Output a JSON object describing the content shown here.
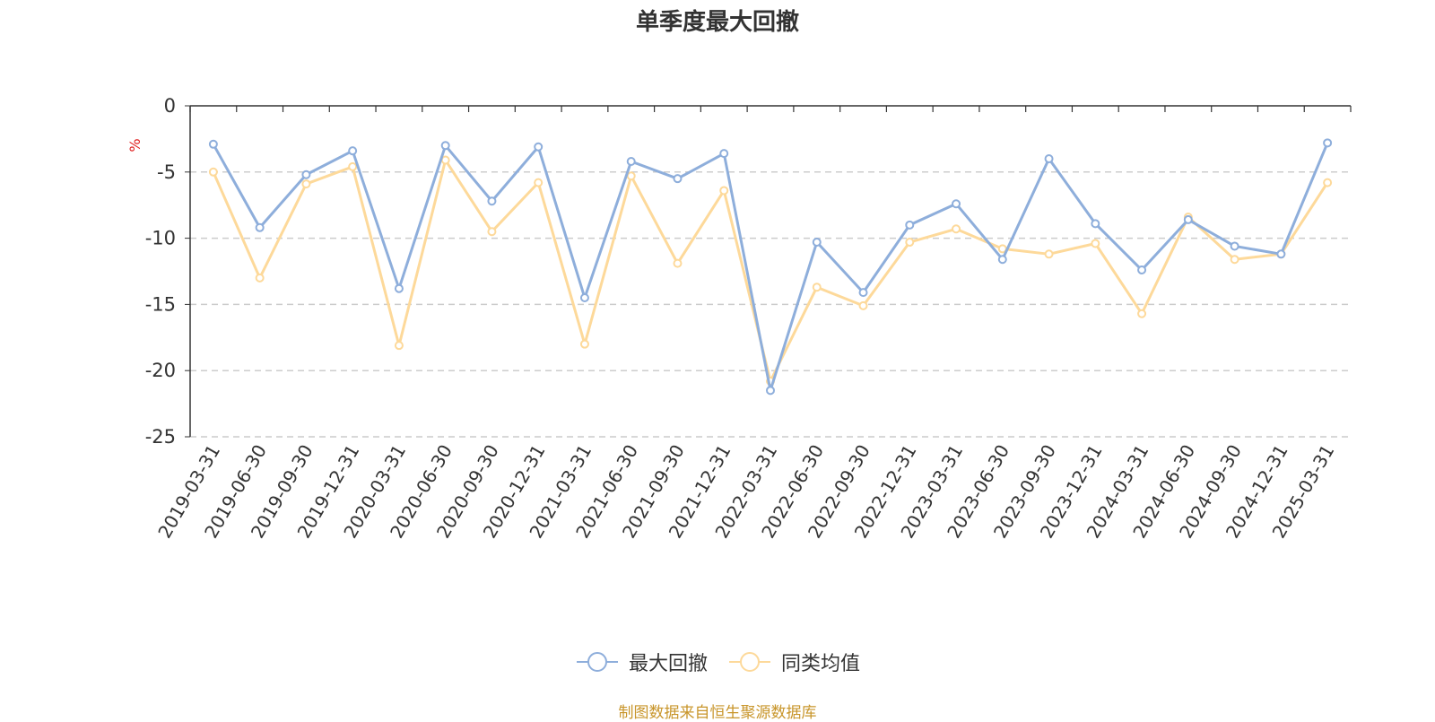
{
  "chart_data": {
    "type": "line",
    "title": "单季度最大回撤",
    "ylabel": "%",
    "xlabel": "",
    "ylim": [
      -25,
      0
    ],
    "yticks": [
      0,
      -5,
      -10,
      -15,
      -20,
      -25
    ],
    "grid": true,
    "legend_position": "bottom",
    "categories": [
      "2019-03-31",
      "2019-06-30",
      "2019-09-30",
      "2019-12-31",
      "2020-03-31",
      "2020-06-30",
      "2020-09-30",
      "2020-12-31",
      "2021-03-31",
      "2021-06-30",
      "2021-09-30",
      "2021-12-31",
      "2022-03-31",
      "2022-06-30",
      "2022-09-30",
      "2022-12-31",
      "2023-03-31",
      "2023-06-30",
      "2023-09-30",
      "2023-12-31",
      "2024-03-31",
      "2024-06-30",
      "2024-09-30",
      "2024-12-31",
      "2025-03-31"
    ],
    "series": [
      {
        "name": "最大回撤",
        "color": "#8eaedb",
        "values": [
          -2.9,
          -9.2,
          -5.2,
          -3.4,
          -13.8,
          -3.0,
          -7.2,
          -3.1,
          -14.5,
          -4.2,
          -5.5,
          -3.6,
          -21.5,
          -10.3,
          -14.1,
          -9.0,
          -7.4,
          -11.6,
          -4.0,
          -8.9,
          -12.4,
          -8.6,
          -10.6,
          -11.2,
          -2.8
        ]
      },
      {
        "name": "同类均值",
        "color": "#fdd99a",
        "values": [
          -5.0,
          -13.0,
          -5.9,
          -4.6,
          -18.1,
          -4.1,
          -9.5,
          -5.8,
          -18.0,
          -5.3,
          -11.9,
          -6.4,
          -20.8,
          -13.7,
          -15.1,
          -10.3,
          -9.3,
          -10.8,
          -11.2,
          -10.4,
          -15.7,
          -8.4,
          -11.6,
          -11.2,
          -5.8
        ]
      }
    ]
  },
  "source_note": "制图数据来自恒生聚源数据库"
}
